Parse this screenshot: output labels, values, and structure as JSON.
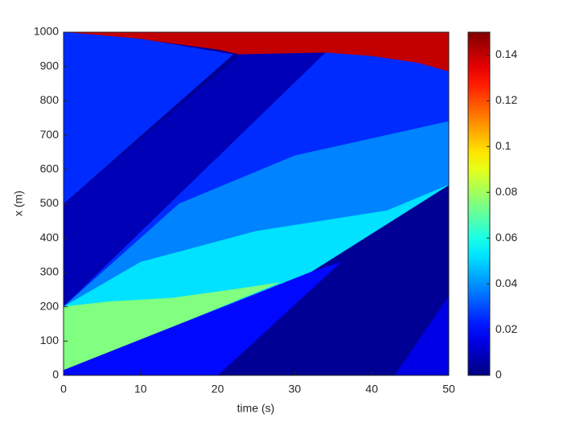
{
  "chart_data": {
    "type": "contour",
    "xlabel": "time (s)",
    "ylabel": "x (m)",
    "xlim": [
      0,
      50
    ],
    "ylim": [
      0,
      1000
    ],
    "xticks": [
      0,
      10,
      20,
      30,
      40,
      50
    ],
    "yticks": [
      0,
      100,
      200,
      300,
      400,
      500,
      600,
      700,
      800,
      900,
      1000
    ],
    "colormap": "jet",
    "clim": [
      0,
      0.15
    ],
    "cticks": [
      0,
      0.02,
      0.04,
      0.06,
      0.08,
      0.1,
      0.12,
      0.14
    ],
    "background": 0.003,
    "regions": [
      {
        "value": 0.14,
        "x": [
          0,
          10,
          20,
          23,
          28,
          33,
          40,
          46,
          50,
          50
        ],
        "y": [
          1000,
          980,
          950,
          935,
          935,
          940,
          930,
          910,
          885,
          1000
        ]
      },
      {
        "value": 0.025,
        "x": [
          0,
          10,
          22,
          0
        ],
        "y": [
          1000,
          980,
          935,
          500
        ]
      },
      {
        "value": 0.008,
        "x": [
          0,
          23,
          34,
          0
        ],
        "y": [
          500,
          935,
          940,
          200
        ]
      },
      {
        "value": 0.025,
        "x": [
          0,
          34,
          40,
          46,
          50,
          50,
          32,
          0
        ],
        "y": [
          200,
          940,
          930,
          910,
          885,
          555,
          300,
          15
        ]
      },
      {
        "value": 0.038,
        "x": [
          0,
          15,
          30,
          50,
          50,
          32,
          0
        ],
        "y": [
          200,
          500,
          640,
          740,
          555,
          300,
          15
        ]
      },
      {
        "value": 0.052,
        "x": [
          0,
          10,
          25,
          42,
          50,
          32,
          0
        ],
        "y": [
          200,
          330,
          420,
          480,
          555,
          300,
          15
        ]
      },
      {
        "value": 0.075,
        "x": [
          0,
          6,
          14,
          22,
          28,
          14,
          0
        ],
        "y": [
          200,
          215,
          225,
          250,
          270,
          140,
          15
        ]
      },
      {
        "value": 0.02,
        "x": [
          0,
          32,
          36,
          20,
          0
        ],
        "y": [
          15,
          300,
          330,
          0,
          0
        ]
      },
      {
        "value": 0.015,
        "x": [
          43,
          50,
          50
        ],
        "y": [
          0,
          0,
          230
        ]
      }
    ]
  }
}
